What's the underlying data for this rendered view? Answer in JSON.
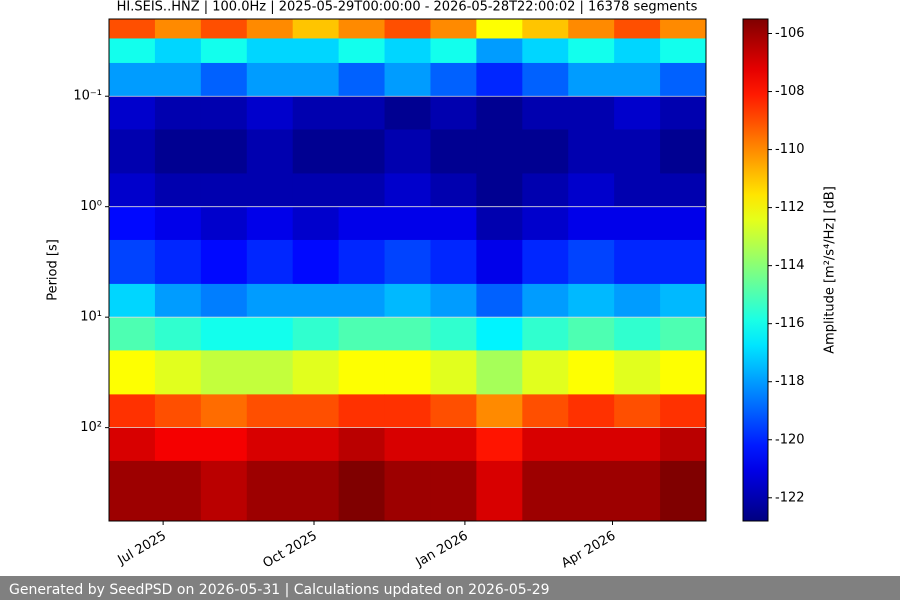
{
  "chart_data": {
    "type": "heatmap",
    "title": "HI.SEIS..HNZ | 100.0Hz | 2025-05-29T00:00:00 - 2026-05-28T22:00:02 | 16378 segments",
    "y_label": "Period [s]",
    "colorbar_label": "Amplitude [m²/s⁴/Hz] [dB]",
    "footer": "Generated by SeedPSD on 2026-05-31 | Calculations updated on 2026-05-29",
    "xlim": [
      "2025-05-29",
      "2026-05-28"
    ],
    "xticks": [
      {
        "value": "2025-07-01",
        "label": "Jul 2025"
      },
      {
        "value": "2025-10-01",
        "label": "Oct 2025"
      },
      {
        "value": "2026-01-01",
        "label": "Jan 2026"
      },
      {
        "value": "2026-04-01",
        "label": "Apr 2026"
      }
    ],
    "ylim": [
      0.02,
      700
    ],
    "log_y": true,
    "y_inverted": true,
    "yticks": [
      {
        "value": 0.1,
        "label": "10⁻¹"
      },
      {
        "value": 1,
        "label": "10⁰"
      },
      {
        "value": 10,
        "label": "10¹"
      },
      {
        "value": 100,
        "label": "10²"
      }
    ],
    "grid": true,
    "colormap": "jet",
    "clim": [
      -122.8,
      -105.5
    ],
    "cticks": [
      -106,
      -108,
      -110,
      -112,
      -114,
      -116,
      -118,
      -120,
      -122
    ],
    "x_bins": [
      "2025-05-29",
      "2025-06-26",
      "2025-07-24",
      "2025-08-21",
      "2025-09-18",
      "2025-10-16",
      "2025-11-13",
      "2025-12-11",
      "2026-01-08",
      "2026-02-05",
      "2026-03-05",
      "2026-04-02",
      "2026-04-30",
      "2026-05-28"
    ],
    "y_bins": [
      0.02,
      0.03,
      0.05,
      0.1,
      0.2,
      0.5,
      1,
      2,
      5,
      10,
      20,
      50,
      100,
      200,
      700
    ],
    "values": [
      [
        -109,
        -110,
        -109,
        -110,
        -111,
        -110,
        -109,
        -110,
        -112,
        -111,
        -110,
        -109,
        -110
      ],
      [
        -116,
        -117,
        -116,
        -117,
        -117,
        -116,
        -117,
        -116,
        -118,
        -117,
        -116,
        -117,
        -116
      ],
      [
        -118,
        -118,
        -119,
        -118,
        -118,
        -119,
        -118,
        -119,
        -120,
        -119,
        -118,
        -118,
        -119
      ],
      [
        -121.5,
        -122,
        -122,
        -121.5,
        -122,
        -122,
        -122.5,
        -122,
        -122.5,
        -122,
        -122,
        -121.5,
        -122
      ],
      [
        -122,
        -122.5,
        -122.5,
        -122,
        -122.5,
        -122.5,
        -122,
        -122.5,
        -122.5,
        -122.5,
        -122,
        -122,
        -122.5
      ],
      [
        -121.5,
        -122,
        -122,
        -122,
        -122,
        -122,
        -121.5,
        -122,
        -122.5,
        -122,
        -121.5,
        -122,
        -122
      ],
      [
        -120.5,
        -121,
        -121.5,
        -121,
        -121.5,
        -121,
        -121,
        -121,
        -122,
        -121.5,
        -121,
        -121,
        -121
      ],
      [
        -119.5,
        -120,
        -120.5,
        -120,
        -120.5,
        -120,
        -119.5,
        -120,
        -121,
        -120,
        -119.5,
        -120,
        -120
      ],
      [
        -117,
        -118,
        -118.5,
        -118,
        -118,
        -118,
        -117.5,
        -118,
        -119,
        -118,
        -117.5,
        -118,
        -117.5
      ],
      [
        -115,
        -115.5,
        -116,
        -116,
        -115.5,
        -115,
        -115,
        -115.5,
        -116.5,
        -115.5,
        -115,
        -115.5,
        -115
      ],
      [
        -112,
        -112.5,
        -113,
        -113,
        -112.5,
        -112,
        -112,
        -112.5,
        -113.5,
        -112.5,
        -112,
        -112.5,
        -112
      ],
      [
        -108.5,
        -109,
        -109.5,
        -109,
        -109,
        -108.5,
        -108.5,
        -109,
        -110,
        -109,
        -108.5,
        -109,
        -108.5
      ],
      [
        -107,
        -107.5,
        -107.5,
        -107,
        -107,
        -106.5,
        -107,
        -107,
        -108,
        -107,
        -107,
        -107,
        -106.5
      ],
      [
        -106,
        -106,
        -106.5,
        -106,
        -106,
        -105.5,
        -106,
        -106,
        -107,
        -106,
        -106,
        -106,
        -105.5
      ]
    ]
  }
}
